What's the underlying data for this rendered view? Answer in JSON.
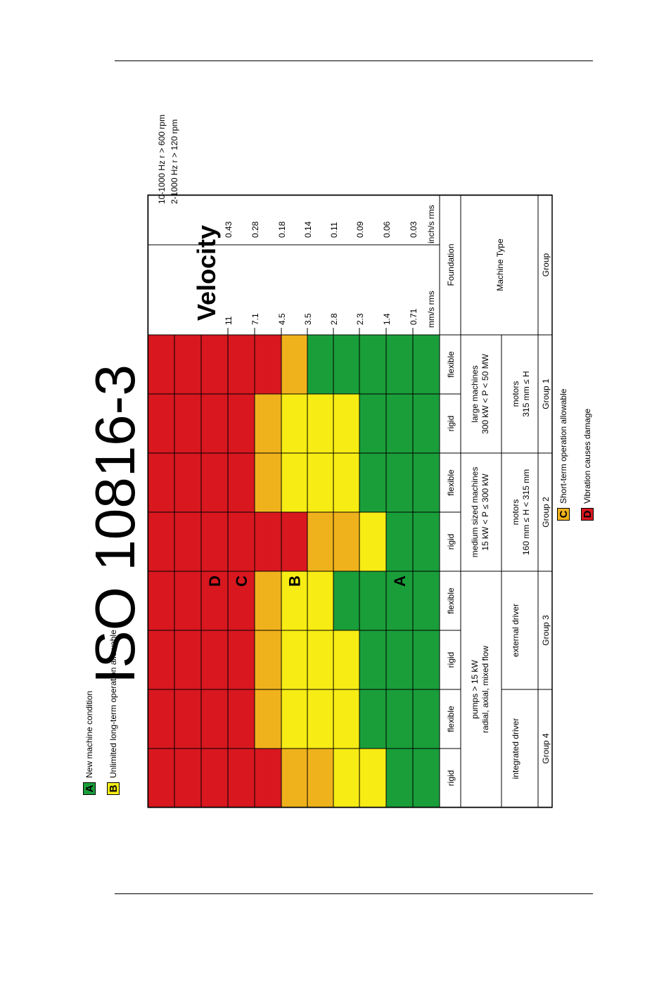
{
  "page": {
    "title": "ISO 10816-3"
  },
  "chart": {
    "title": "Velocity",
    "freq_lines": [
      "10-1000 Hz r > 600 rpm",
      "2-1000 Hz r > 120 rpm"
    ],
    "mm_values": [
      "11",
      "7.1",
      "4.5",
      "3.5",
      "2.8",
      "2.3",
      "1.4",
      "0.71"
    ],
    "inch_values": [
      "0.43",
      "0.28",
      "0.18",
      "0.14",
      "0.11",
      "0.09",
      "0.06",
      "0.03"
    ],
    "unit_mm": "mm/s rms",
    "unit_inch": "inch/s rms",
    "row_labels": {
      "foundation": "Foundation",
      "machine_type": "Machine Type",
      "group": "Group"
    },
    "foundation": [
      "rigid",
      "flexible",
      "rigid",
      "flexible",
      "rigid",
      "flexible",
      "rigid",
      "flexible"
    ],
    "machine_pairs": [
      {
        "lines": [
          "pumps > 15 kW",
          "radial, axial, mixed flow"
        ]
      },
      {
        "lines": [
          "medium sized machines",
          "15 kW < P ≤ 300 kW"
        ]
      },
      {
        "lines": [
          "large machines",
          "300 kW < P < 50 MW"
        ]
      }
    ],
    "driver_cells": [
      {
        "lines": [
          "integrated driver"
        ]
      },
      {
        "lines": [
          "external driver"
        ]
      },
      {
        "lines": [
          "motors",
          "160 mm ≤ H < 315 mm"
        ]
      },
      {
        "lines": [
          "motors",
          "315 mm ≤ H"
        ]
      }
    ],
    "groups": [
      "Group 4",
      "Group 3",
      "Group 2",
      "Group 1"
    ],
    "zone_letters": [
      "D",
      "C",
      "B",
      "A"
    ],
    "zone_colors": {
      "A": "#1a9e3a",
      "B": "#f7ec14",
      "C": "#f0b21c",
      "D": "#d8171f"
    },
    "columns": [
      {
        "zones": [
          "A",
          "A",
          "B",
          "B",
          "C",
          "C",
          "D",
          "D",
          "D",
          "D",
          "D"
        ]
      },
      {
        "zones": [
          "A",
          "A",
          "A",
          "B",
          "B",
          "B",
          "C",
          "D",
          "D",
          "D",
          "D"
        ]
      },
      {
        "zones": [
          "A",
          "A",
          "A",
          "B",
          "B",
          "B",
          "C",
          "D",
          "D",
          "D",
          "D"
        ]
      },
      {
        "zones": [
          "A",
          "A",
          "A",
          "A",
          "B",
          "B",
          "C",
          "D",
          "D",
          "D",
          "D"
        ]
      },
      {
        "zones": [
          "A",
          "A",
          "B",
          "C",
          "C",
          "D",
          "D",
          "D",
          "D",
          "D",
          "D"
        ]
      },
      {
        "zones": [
          "A",
          "A",
          "A",
          "B",
          "B",
          "B",
          "C",
          "D",
          "D",
          "D",
          "D"
        ]
      },
      {
        "zones": [
          "A",
          "A",
          "A",
          "B",
          "B",
          "B",
          "C",
          "D",
          "D",
          "D",
          "D"
        ]
      },
      {
        "zones": [
          "A",
          "A",
          "A",
          "A",
          "A",
          "C",
          "D",
          "D",
          "D",
          "D",
          "D"
        ]
      }
    ]
  },
  "legend": [
    {
      "letter": "A",
      "text": "New machine condition",
      "color": "#1a9e3a"
    },
    {
      "letter": "B",
      "text": "Unlimited long-term operation allowable",
      "color": "#f7ec14"
    },
    {
      "letter": "C",
      "text": "Short-term operation allowable",
      "color": "#f0b21c"
    },
    {
      "letter": "D",
      "text": "Vibration causes damage",
      "color": "#d8171f"
    }
  ]
}
